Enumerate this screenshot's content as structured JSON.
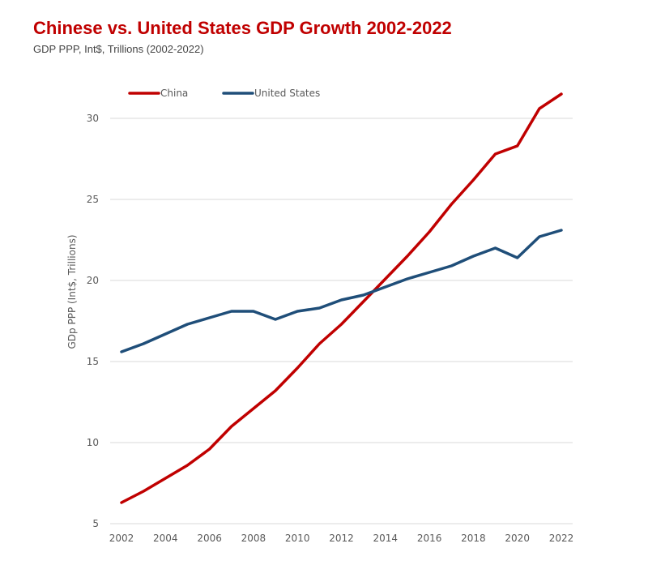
{
  "header": {
    "title": "Chinese vs. United States GDP Growth 2002-2022",
    "subtitle": "GDP PPP, Int$, Trillions (2002-2022)"
  },
  "colors": {
    "title": "#c00000",
    "china": "#c00000",
    "united_states": "#1f4e79",
    "grid": "#d9d9d9",
    "text": "#595959"
  },
  "chart_data": {
    "type": "line",
    "title": "Chinese vs. United States GDP Growth 2002-2022",
    "subtitle": "GDP PPP, Int$, Trillions (2002-2022)",
    "xlabel": "",
    "ylabel": "GDp PPP (Int$, Trillions)",
    "xlim": [
      2002,
      2022
    ],
    "ylim": [
      5,
      31.5
    ],
    "x_ticks": [
      "2002",
      "2004",
      "2006",
      "2008",
      "2010",
      "2012",
      "2014",
      "2016",
      "2018",
      "2020",
      "2022"
    ],
    "y_ticks": [
      "5",
      "10",
      "15",
      "20",
      "25",
      "30"
    ],
    "grid": "horizontal",
    "legend_position": "top-left",
    "x": [
      2002,
      2003,
      2004,
      2005,
      2006,
      2007,
      2008,
      2009,
      2010,
      2011,
      2012,
      2013,
      2014,
      2015,
      2016,
      2017,
      2018,
      2019,
      2020,
      2021,
      2022
    ],
    "series": [
      {
        "name": "China",
        "color": "#c00000",
        "values": [
          6.3,
          7.0,
          7.8,
          8.6,
          9.6,
          11.0,
          12.1,
          13.2,
          14.6,
          16.1,
          17.3,
          18.7,
          20.1,
          21.5,
          23.0,
          24.7,
          26.2,
          27.8,
          28.3,
          30.6,
          31.5
        ]
      },
      {
        "name": "United States",
        "color": "#1f4e79",
        "values": [
          15.6,
          16.1,
          16.7,
          17.3,
          17.7,
          18.1,
          18.1,
          17.6,
          18.1,
          18.3,
          18.8,
          19.1,
          19.6,
          20.1,
          20.5,
          20.9,
          21.5,
          22.0,
          21.4,
          22.7,
          23.1
        ]
      }
    ]
  }
}
